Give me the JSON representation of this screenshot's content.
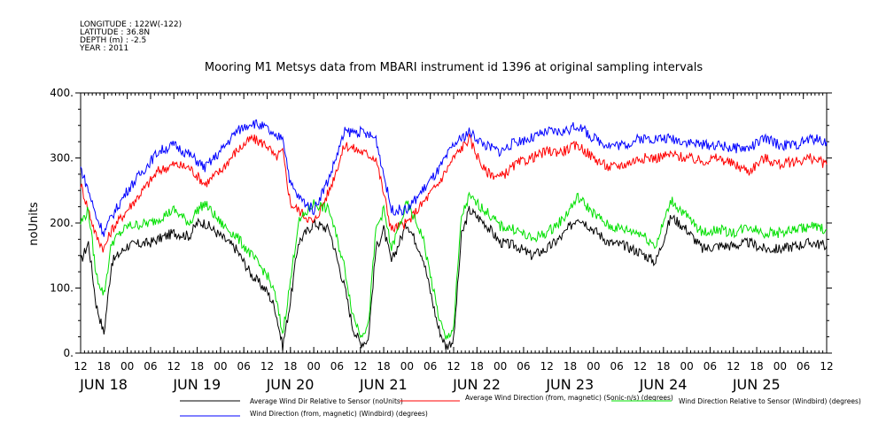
{
  "header": {
    "meta_lines": [
      "LONGITUDE : 122W(-122)",
      "LATITUDE : 36.8N",
      "DEPTH (m) : -2.5",
      "YEAR : 2011"
    ]
  },
  "chart_data": {
    "type": "line",
    "title": "Mooring M1 Metsys data from MBARI instrument id 1396 at original sampling intervals",
    "ylabel": "noUnits",
    "xlabel": "",
    "ylim": [
      0,
      400
    ],
    "yticks": [
      0,
      100,
      200,
      300,
      400
    ],
    "ytick_labels": [
      "0.",
      "100.",
      "200.",
      "300.",
      "400."
    ],
    "x_unit": "hours since 2011-06-17 12:00",
    "xlim": [
      0,
      192
    ],
    "hour_ticks": [
      {
        "x": 0,
        "label": "12"
      },
      {
        "x": 6,
        "label": "18"
      },
      {
        "x": 12,
        "label": "00"
      },
      {
        "x": 18,
        "label": "06"
      },
      {
        "x": 24,
        "label": "12"
      },
      {
        "x": 30,
        "label": "18"
      },
      {
        "x": 36,
        "label": "00"
      },
      {
        "x": 42,
        "label": "06"
      },
      {
        "x": 48,
        "label": "12"
      },
      {
        "x": 54,
        "label": "18"
      },
      {
        "x": 60,
        "label": "00"
      },
      {
        "x": 66,
        "label": "06"
      },
      {
        "x": 72,
        "label": "12"
      },
      {
        "x": 78,
        "label": "18"
      },
      {
        "x": 84,
        "label": "00"
      },
      {
        "x": 90,
        "label": "06"
      },
      {
        "x": 96,
        "label": "12"
      },
      {
        "x": 102,
        "label": "18"
      },
      {
        "x": 108,
        "label": "00"
      },
      {
        "x": 114,
        "label": "06"
      },
      {
        "x": 120,
        "label": "12"
      },
      {
        "x": 126,
        "label": "18"
      },
      {
        "x": 132,
        "label": "00"
      },
      {
        "x": 138,
        "label": "06"
      },
      {
        "x": 144,
        "label": "12"
      },
      {
        "x": 150,
        "label": "18"
      },
      {
        "x": 156,
        "label": "00"
      },
      {
        "x": 162,
        "label": "06"
      },
      {
        "x": 168,
        "label": "12"
      },
      {
        "x": 174,
        "label": "18"
      },
      {
        "x": 180,
        "label": "00"
      },
      {
        "x": 186,
        "label": "06"
      },
      {
        "x": 192,
        "label": "12"
      }
    ],
    "day_labels": [
      {
        "x": 0,
        "label": "JUN 18"
      },
      {
        "x": 24,
        "label": "JUN 19"
      },
      {
        "x": 48,
        "label": "JUN 20"
      },
      {
        "x": 72,
        "label": "JUN 21"
      },
      {
        "x": 96,
        "label": "JUN 22"
      },
      {
        "x": 120,
        "label": "JUN 23"
      },
      {
        "x": 144,
        "label": "JUN 24"
      },
      {
        "x": 168,
        "label": "JUN 25"
      }
    ],
    "grid": false,
    "legend_position": "bottom",
    "series": [
      {
        "name": "Average Wind Dir Relative to Sensor (noUnits)",
        "color": "#000000",
        "x": [
          0,
          2,
          4,
          6,
          8,
          12,
          18,
          24,
          28,
          30,
          32,
          36,
          40,
          44,
          48,
          50,
          52,
          54,
          56,
          60,
          64,
          68,
          70,
          72,
          74,
          76,
          78,
          80,
          84,
          88,
          92,
          94,
          96,
          98,
          100,
          104,
          108,
          112,
          116,
          120,
          124,
          128,
          132,
          136,
          140,
          144,
          148,
          150,
          152,
          156,
          160,
          164,
          168,
          172,
          176,
          180,
          184,
          188,
          192
        ],
        "y": [
          140,
          170,
          75,
          30,
          140,
          165,
          170,
          185,
          180,
          200,
          200,
          180,
          160,
          120,
          95,
          70,
          10,
          80,
          170,
          200,
          190,
          100,
          40,
          15,
          20,
          160,
          190,
          140,
          200,
          150,
          40,
          10,
          20,
          180,
          220,
          200,
          170,
          165,
          150,
          160,
          180,
          210,
          190,
          170,
          165,
          155,
          140,
          175,
          210,
          190,
          160,
          165,
          165,
          170,
          160,
          160,
          165,
          170,
          165
        ]
      },
      {
        "name": "Average Wind Direction (from, magnetic) (Sonic-n/s) (degrees)",
        "color": "#ff0000",
        "x": [
          0,
          2,
          4,
          6,
          8,
          12,
          16,
          20,
          24,
          28,
          32,
          36,
          40,
          44,
          48,
          50,
          52,
          54,
          56,
          60,
          64,
          68,
          72,
          76,
          80,
          84,
          88,
          92,
          96,
          100,
          104,
          108,
          112,
          116,
          120,
          124,
          128,
          132,
          136,
          140,
          144,
          148,
          152,
          156,
          160,
          164,
          168,
          172,
          176,
          180,
          184,
          188,
          192
        ],
        "y": [
          260,
          220,
          180,
          160,
          190,
          220,
          250,
          280,
          290,
          285,
          260,
          280,
          310,
          330,
          320,
          300,
          310,
          230,
          220,
          200,
          250,
          320,
          310,
          300,
          190,
          200,
          230,
          260,
          300,
          330,
          280,
          270,
          290,
          300,
          310,
          310,
          320,
          300,
          285,
          290,
          300,
          300,
          305,
          300,
          295,
          300,
          290,
          280,
          300,
          290,
          295,
          300,
          290
        ]
      },
      {
        "name": "Wind Direction Relative to Sensor (Windbird) (degrees)",
        "color": "#00e000",
        "x": [
          0,
          2,
          4,
          6,
          8,
          12,
          18,
          24,
          28,
          30,
          32,
          36,
          40,
          44,
          48,
          50,
          52,
          54,
          56,
          60,
          64,
          68,
          70,
          72,
          74,
          76,
          78,
          80,
          84,
          88,
          92,
          94,
          96,
          98,
          100,
          104,
          108,
          112,
          116,
          120,
          124,
          128,
          132,
          136,
          140,
          144,
          148,
          150,
          152,
          156,
          160,
          164,
          168,
          172,
          176,
          180,
          184,
          188,
          192
        ],
        "y": [
          200,
          220,
          120,
          90,
          170,
          195,
          200,
          220,
          200,
          220,
          230,
          200,
          180,
          150,
          120,
          90,
          30,
          110,
          200,
          230,
          220,
          130,
          60,
          30,
          40,
          190,
          220,
          160,
          230,
          180,
          60,
          20,
          40,
          210,
          240,
          220,
          195,
          190,
          175,
          185,
          205,
          240,
          215,
          195,
          190,
          185,
          165,
          200,
          235,
          210,
          185,
          190,
          185,
          195,
          185,
          185,
          190,
          195,
          190
        ]
      },
      {
        "name": "Wind Direction (from, magnetic) (Windbird) (degrees)",
        "color": "#0000ff",
        "x": [
          0,
          2,
          4,
          6,
          8,
          12,
          16,
          20,
          24,
          28,
          32,
          36,
          40,
          44,
          48,
          50,
          52,
          54,
          56,
          60,
          64,
          68,
          72,
          76,
          80,
          84,
          88,
          92,
          96,
          100,
          104,
          108,
          112,
          116,
          120,
          124,
          128,
          132,
          136,
          140,
          144,
          148,
          152,
          156,
          160,
          164,
          168,
          172,
          176,
          180,
          184,
          188,
          192
        ],
        "y": [
          285,
          250,
          210,
          185,
          210,
          250,
          280,
          310,
          320,
          305,
          285,
          310,
          340,
          355,
          345,
          330,
          335,
          260,
          240,
          220,
          270,
          340,
          340,
          330,
          220,
          220,
          250,
          280,
          320,
          340,
          320,
          310,
          325,
          330,
          340,
          340,
          350,
          330,
          320,
          320,
          330,
          330,
          330,
          325,
          320,
          320,
          315,
          315,
          330,
          320,
          320,
          330,
          325
        ]
      }
    ]
  }
}
